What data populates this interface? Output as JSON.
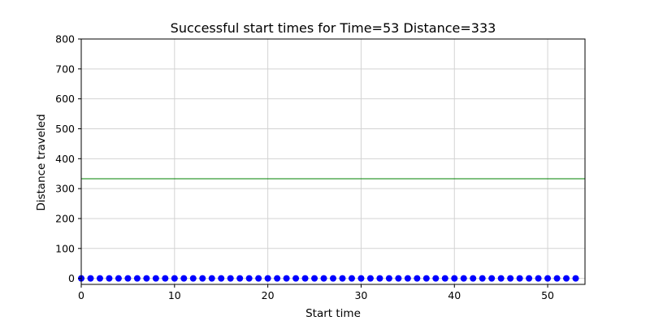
{
  "chart_data": {
    "type": "scatter",
    "title": "Successful start times for Time=53 Distance=333",
    "xlabel": "Start time",
    "ylabel": "Distance traveled",
    "xlim": [
      0,
      54
    ],
    "ylim": [
      -20,
      800
    ],
    "xticks": [
      0,
      10,
      20,
      30,
      40,
      50
    ],
    "yticks": [
      0,
      100,
      200,
      300,
      400,
      500,
      600,
      700,
      800
    ],
    "grid": "vertical",
    "series": [
      {
        "marker_color": "#0000ff",
        "x": [
          0,
          1,
          2,
          3,
          4,
          5,
          6,
          7,
          8,
          9,
          10,
          11,
          12,
          13,
          14,
          15,
          16,
          17,
          18,
          19,
          20,
          21,
          22,
          23,
          24,
          25,
          26,
          27,
          28,
          29,
          30,
          31,
          32,
          33,
          34,
          35,
          36,
          37,
          38,
          39,
          40,
          41,
          42,
          43,
          44,
          45,
          46,
          47,
          48,
          49,
          50,
          51,
          52,
          53
        ],
        "y": [
          0,
          0,
          0,
          0,
          0,
          0,
          0,
          0,
          0,
          0,
          0,
          0,
          0,
          0,
          0,
          0,
          0,
          0,
          0,
          0,
          0,
          0,
          0,
          0,
          0,
          0,
          0,
          0,
          0,
          0,
          0,
          0,
          0,
          0,
          0,
          0,
          0,
          0,
          0,
          0,
          0,
          0,
          0,
          0,
          0,
          0,
          0,
          0,
          0,
          0,
          0,
          0,
          0,
          0
        ]
      }
    ],
    "reference_line": {
      "y": 333,
      "color": "#008000"
    },
    "grid_color": "#d3d3d3"
  }
}
